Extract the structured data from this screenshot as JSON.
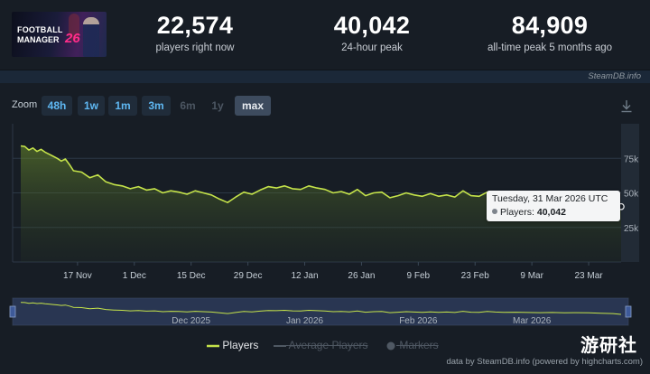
{
  "game": {
    "logo_line1": "FOOTBALL",
    "logo_line2": "MANAGER",
    "logo_number": "26"
  },
  "stats": [
    {
      "value": "22,574",
      "label": "players right now"
    },
    {
      "value": "40,042",
      "label": "24-hour peak"
    },
    {
      "value": "84,909",
      "label": "all-time peak 5 months ago"
    }
  ],
  "credit": "SteamDB.info",
  "zoom": {
    "label": "Zoom",
    "buttons": [
      {
        "label": "48h",
        "state": "enabled"
      },
      {
        "label": "1w",
        "state": "enabled"
      },
      {
        "label": "1m",
        "state": "enabled"
      },
      {
        "label": "3m",
        "state": "enabled"
      },
      {
        "label": "6m",
        "state": "disabled"
      },
      {
        "label": "1y",
        "state": "disabled"
      },
      {
        "label": "max",
        "state": "active"
      }
    ]
  },
  "icons": {
    "download": "download-icon"
  },
  "chart_data": {
    "type": "line",
    "series": [
      {
        "name": "Players",
        "color": "#c5e34a",
        "x": [
          "2025-11-03",
          "2025-11-04",
          "2025-11-05",
          "2025-11-06",
          "2025-11-07",
          "2025-11-08",
          "2025-11-09",
          "2025-11-10",
          "2025-11-11",
          "2025-11-12",
          "2025-11-13",
          "2025-11-14",
          "2025-11-15",
          "2025-11-16",
          "2025-11-18",
          "2025-11-20",
          "2025-11-22",
          "2025-11-24",
          "2025-11-26",
          "2025-11-28",
          "2025-11-30",
          "2025-12-02",
          "2025-12-04",
          "2025-12-06",
          "2025-12-08",
          "2025-12-10",
          "2025-12-12",
          "2025-12-14",
          "2025-12-16",
          "2025-12-18",
          "2025-12-20",
          "2025-12-22",
          "2025-12-24",
          "2025-12-26",
          "2025-12-28",
          "2025-12-30",
          "2026-01-01",
          "2026-01-03",
          "2026-01-05",
          "2026-01-07",
          "2026-01-09",
          "2026-01-11",
          "2026-01-13",
          "2026-01-15",
          "2026-01-17",
          "2026-01-19",
          "2026-01-21",
          "2026-01-23",
          "2026-01-25",
          "2026-01-27",
          "2026-01-29",
          "2026-01-31",
          "2026-02-02",
          "2026-02-04",
          "2026-02-06",
          "2026-02-08",
          "2026-02-10",
          "2026-02-12",
          "2026-02-14",
          "2026-02-16",
          "2026-02-18",
          "2026-02-20",
          "2026-02-22",
          "2026-02-24",
          "2026-02-26",
          "2026-02-28",
          "2026-03-02",
          "2026-03-05",
          "2026-03-08",
          "2026-03-11",
          "2026-03-14",
          "2026-03-17",
          "2026-03-20",
          "2026-03-23",
          "2026-03-26",
          "2026-03-29",
          "2026-03-31"
        ],
        "values": [
          84000,
          83500,
          81000,
          82500,
          80000,
          81500,
          79500,
          78000,
          76500,
          75000,
          73000,
          74500,
          70500,
          66000,
          65000,
          61000,
          63000,
          58000,
          56000,
          55000,
          53000,
          54500,
          52000,
          53000,
          50000,
          51500,
          50500,
          49000,
          51500,
          50000,
          48500,
          45500,
          43000,
          47000,
          50500,
          49000,
          52000,
          54500,
          53500,
          55000,
          53000,
          52500,
          55000,
          53500,
          52500,
          50000,
          51000,
          49000,
          52500,
          48000,
          50000,
          50500,
          46500,
          48000,
          50000,
          48500,
          47500,
          49500,
          47500,
          48500,
          47000,
          51500,
          48000,
          47500,
          50500,
          48500,
          47500,
          48000,
          47000,
          46500,
          47000,
          46000,
          46500,
          45500,
          44000,
          43000,
          40042
        ]
      }
    ],
    "xticks": [
      "17 Nov",
      "1 Dec",
      "15 Dec",
      "29 Dec",
      "12 Jan",
      "26 Jan",
      "9 Feb",
      "23 Feb",
      "9 Mar",
      "23 Mar"
    ],
    "yticks": [
      "25k",
      "50k",
      "75k"
    ],
    "ylim": [
      0,
      100000
    ],
    "xlim": [
      "2025-11-01",
      "2026-03-31"
    ],
    "grid": true,
    "legend_position": "bottom",
    "navigator_labels": [
      "Dec 2025",
      "Jan 2026",
      "Feb 2026",
      "Mar 2026"
    ],
    "tooltip": {
      "date": "Tuesday, 31 Mar 2026 UTC",
      "series_label": "Players:",
      "value": "40,042"
    }
  },
  "legend": [
    {
      "label": "Players",
      "state": "visible"
    },
    {
      "label": "Average Players",
      "state": "hidden"
    },
    {
      "label": "Markers",
      "state": "hidden"
    }
  ],
  "footer_credit": "data by SteamDB.info (powered by highcharts.com)",
  "watermark": "游研社"
}
